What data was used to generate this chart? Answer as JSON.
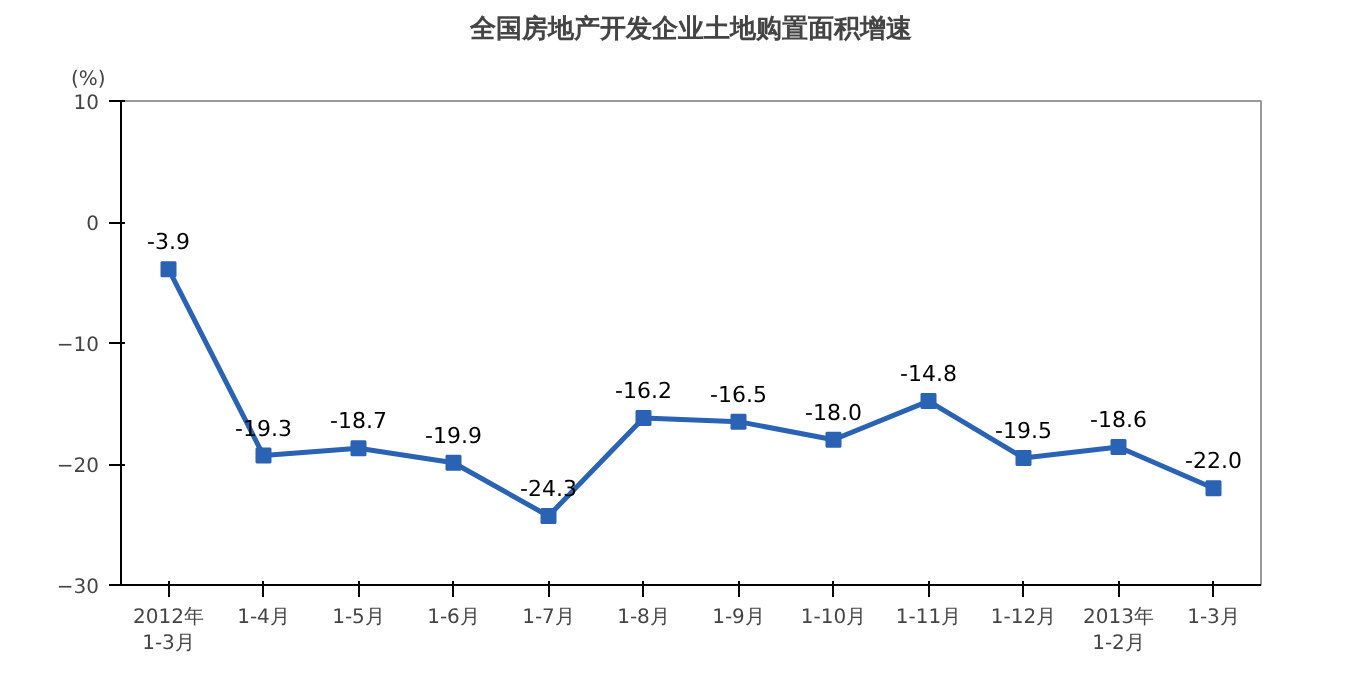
{
  "chart_data": {
    "type": "line",
    "title": "全国房地产开发企业土地购置面积增速",
    "ylabel": "(%)",
    "categories": [
      "2012年\n1-3月",
      "1-4月",
      "1-5月",
      "1-6月",
      "1-7月",
      "1-8月",
      "1-9月",
      "1-10月",
      "1-11月",
      "1-12月",
      "2013年\n1-2月",
      "1-3月"
    ],
    "series": [
      {
        "color": "#2a62b4",
        "values": [
          -3.9,
          -19.3,
          -18.7,
          -19.9,
          -24.3,
          -16.2,
          -16.5,
          -18.0,
          -14.8,
          -19.5,
          -18.6,
          -22.0
        ],
        "value_labels": [
          "-3.9",
          "-19.3",
          "-18.7",
          "-19.9",
          "-24.3",
          "-16.2",
          "-16.5",
          "-18.0",
          "-14.8",
          "-19.5",
          "-18.6",
          "-22.0"
        ]
      }
    ],
    "ylim": [
      -30,
      10
    ],
    "yticks": [
      -30,
      -20,
      -10,
      0,
      10
    ],
    "grid": false,
    "marker": "square",
    "line_style": "solid"
  }
}
